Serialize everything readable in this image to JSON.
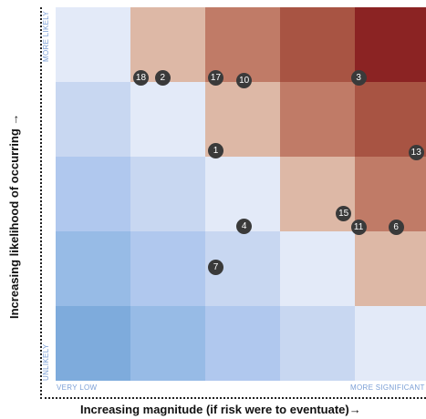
{
  "chart_data": {
    "type": "heatmap",
    "title": "",
    "xlabel": "Increasing magnitude (if risk were to eventuate)→",
    "ylabel": "Increasing likelihood of occurring →",
    "x_ticks": [
      "VERY LOW",
      "MORE SIGNIFICANT"
    ],
    "y_ticks": [
      "MORE LIKELY",
      "UNLIKELY"
    ],
    "grid_size": [
      5,
      5
    ],
    "rows_top_to_bottom": [
      [
        "#e3eaf8",
        "#ddb8a6",
        "#c07b67",
        "#a85443",
        "#8b2323"
      ],
      [
        "#c8d7f1",
        "#e3eaf8",
        "#ddb8a6",
        "#c07b67",
        "#a85443"
      ],
      [
        "#b0c8ee",
        "#c8d7f1",
        "#e3eaf8",
        "#ddb8a6",
        "#c07b67"
      ],
      [
        "#97bbe6",
        "#b0c8ee",
        "#c8d7f1",
        "#e3eaf8",
        "#ddb8a6"
      ],
      [
        "#7eabdc",
        "#97bbe6",
        "#b0c8ee",
        "#c8d7f1",
        "#e3eaf8"
      ]
    ],
    "markers": [
      {
        "label": "18",
        "x": 1.14,
        "y": 4.05
      },
      {
        "label": "2",
        "x": 1.43,
        "y": 4.05
      },
      {
        "label": "17",
        "x": 2.14,
        "y": 4.05
      },
      {
        "label": "10",
        "x": 2.52,
        "y": 4.02
      },
      {
        "label": "3",
        "x": 4.05,
        "y": 4.05
      },
      {
        "label": "13",
        "x": 4.82,
        "y": 3.05
      },
      {
        "label": "1",
        "x": 2.14,
        "y": 3.08
      },
      {
        "label": "4",
        "x": 2.52,
        "y": 2.07
      },
      {
        "label": "15",
        "x": 3.85,
        "y": 2.24
      },
      {
        "label": "11",
        "x": 4.05,
        "y": 2.06
      },
      {
        "label": "6",
        "x": 4.55,
        "y": 2.06
      },
      {
        "label": "7",
        "x": 2.14,
        "y": 1.52
      }
    ],
    "xlim": [
      0,
      5
    ],
    "ylim": [
      0,
      5
    ]
  }
}
